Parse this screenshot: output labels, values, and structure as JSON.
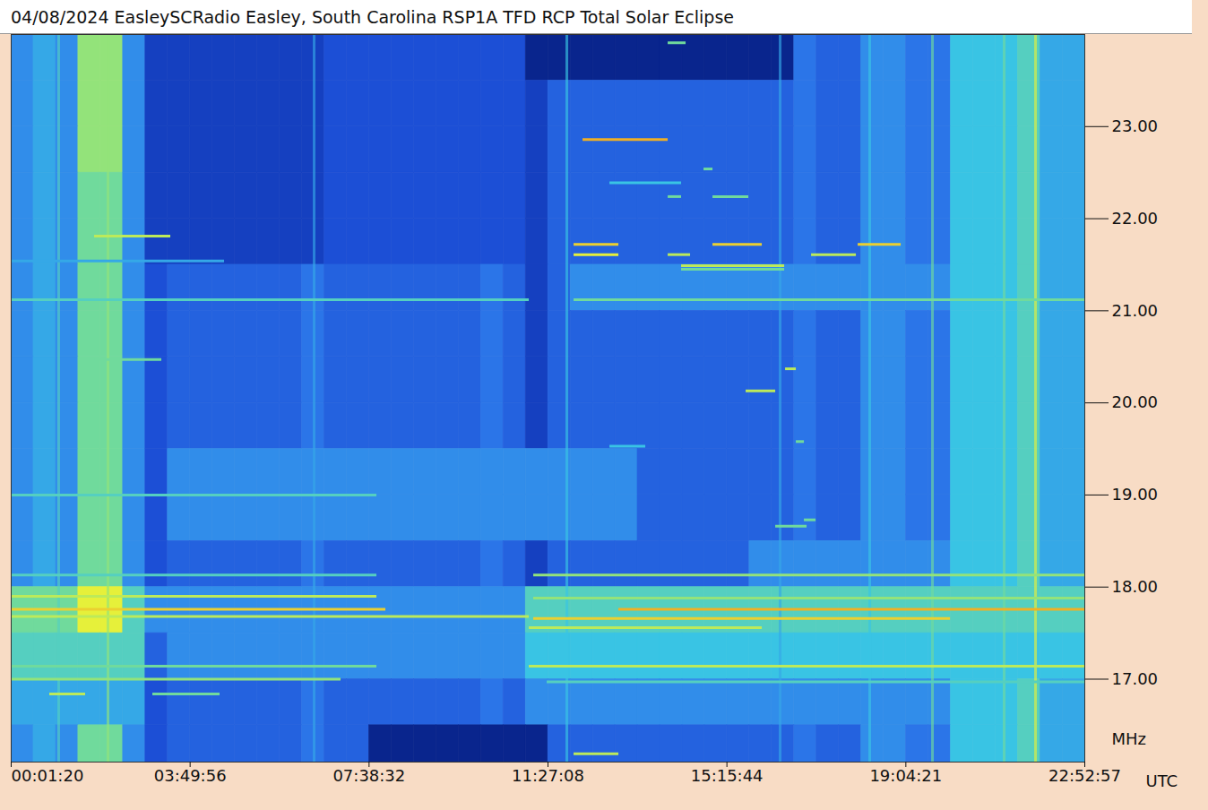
{
  "chart_data": {
    "type": "heatmap",
    "title": "04/08/2024 EasleySCRadio Easley, South Carolina RSP1A TFD RCP Total Solar Eclipse",
    "xlabel": "UTC",
    "ylabel": "MHz",
    "xlim": [
      80,
      82377
    ],
    "xticks": [
      {
        "value": 80,
        "label": "00:01:20"
      },
      {
        "value": 13796,
        "label": "03:49:56"
      },
      {
        "value": 27512,
        "label": "07:38:32"
      },
      {
        "value": 41228,
        "label": "11:27:08"
      },
      {
        "value": 54944,
        "label": "15:15:44"
      },
      {
        "value": 68661,
        "label": "19:04:21"
      },
      {
        "value": 82377,
        "label": "22:52:57"
      }
    ],
    "ylim": [
      16.1,
      24.0
    ],
    "yticks": [
      {
        "value": 17,
        "label": "17.00"
      },
      {
        "value": 18,
        "label": "18.00"
      },
      {
        "value": 19,
        "label": "19.00"
      },
      {
        "value": 20,
        "label": "20.00"
      },
      {
        "value": 21,
        "label": "21.00"
      },
      {
        "value": 22,
        "label": "22.00"
      },
      {
        "value": 23,
        "label": "23.00"
      }
    ],
    "zlim": [
      0,
      10
    ],
    "x_edges": [
      80,
      1795,
      3510,
      5225,
      6940,
      8655,
      10370,
      12085,
      13800,
      15515,
      17230,
      18945,
      20660,
      22375,
      24090,
      25805,
      27520,
      29235,
      30950,
      32665,
      34380,
      36095,
      37810,
      39525,
      41240,
      42955,
      44670,
      46385,
      48100,
      49815,
      51530,
      53245,
      54960,
      56675,
      58390,
      60105,
      61820,
      63535,
      65250,
      66965,
      68680,
      70395,
      72110,
      73825,
      75540,
      77255,
      78970,
      80685,
      82400
    ],
    "y_edges": [
      24,
      23.5,
      23,
      22.5,
      22,
      21.5,
      21,
      20.5,
      20,
      19.5,
      19,
      18.5,
      18,
      17.5,
      17,
      16.5,
      16
    ],
    "z": [
      [
        4,
        4.5,
        4,
        6.5,
        6.5,
        4,
        2,
        2,
        2,
        2,
        2,
        2,
        2,
        2,
        2.5,
        2.5,
        2.5,
        2.5,
        2.5,
        2.5,
        2.5,
        2.5,
        2.5,
        1,
        1,
        1,
        1,
        1,
        1,
        1,
        1,
        1,
        1,
        1,
        1,
        3.5,
        3,
        3,
        4,
        4,
        3.5,
        3.5,
        5,
        5,
        5,
        5.5,
        4.5,
        4.5
      ],
      [
        4,
        4.5,
        4,
        6.5,
        6.5,
        4,
        2,
        2,
        2,
        2,
        2,
        2,
        2,
        2,
        2.5,
        2.5,
        2.5,
        2.5,
        2.5,
        2.5,
        2.5,
        2.5,
        2.5,
        2,
        3,
        3,
        3,
        3,
        3,
        3,
        3,
        3,
        3,
        3,
        3,
        3.5,
        3,
        3,
        4,
        4,
        3.5,
        3.5,
        5,
        5,
        5,
        5.5,
        4.5,
        4.5
      ],
      [
        4,
        4.5,
        4,
        6.5,
        6.5,
        4,
        2,
        2,
        2,
        2,
        2,
        2,
        2,
        2,
        2.5,
        2.5,
        2.5,
        2.5,
        2.5,
        2.5,
        2.5,
        2.5,
        2.5,
        2,
        3,
        3,
        3,
        3,
        3,
        3,
        3,
        3,
        3,
        3,
        3,
        3.5,
        3,
        3,
        4,
        4,
        3.5,
        3.5,
        5,
        5,
        5,
        5.5,
        4.5,
        4.5
      ],
      [
        4,
        4.5,
        4,
        6,
        6,
        4,
        2,
        2,
        2,
        2,
        2,
        2,
        2,
        2,
        2.5,
        2.5,
        2.5,
        2.5,
        2.5,
        2.5,
        2.5,
        2.5,
        2.5,
        2,
        3,
        3,
        3,
        3,
        3,
        3,
        3,
        3,
        3,
        3,
        3,
        3.5,
        3,
        3,
        4,
        4,
        3.5,
        3.5,
        5,
        5,
        5,
        5.5,
        4.5,
        4.5
      ],
      [
        4,
        4.5,
        4,
        6,
        6,
        4,
        2,
        2,
        2,
        2,
        2,
        2,
        2,
        2,
        2.5,
        2.5,
        2.5,
        2.5,
        2.5,
        2.5,
        2.5,
        2.5,
        2.5,
        2,
        3,
        3,
        3,
        3,
        3,
        3,
        3,
        3,
        3,
        3,
        3,
        3.5,
        3,
        3,
        4,
        4,
        3.5,
        3.5,
        5,
        5,
        5,
        5.5,
        4.5,
        4.5
      ],
      [
        4,
        4.5,
        4,
        6,
        6,
        4,
        2.5,
        3,
        3,
        3,
        3,
        3,
        3,
        3.5,
        3,
        3,
        3,
        3,
        3,
        3,
        3,
        3.5,
        3,
        2,
        3,
        4,
        4,
        4,
        4,
        4,
        4,
        4,
        4,
        4,
        4,
        4,
        4,
        4,
        4,
        4,
        4,
        4,
        5,
        5,
        5,
        5.5,
        4.5,
        4.5
      ],
      [
        4,
        4.5,
        4,
        6,
        6,
        4,
        2.5,
        3,
        3,
        3,
        3,
        3,
        3,
        3.5,
        3,
        3,
        3,
        3,
        3,
        3,
        3,
        3.5,
        3,
        2,
        3,
        3,
        3,
        3,
        3,
        3,
        3,
        3,
        3,
        3,
        3,
        3.5,
        3,
        3,
        4,
        4,
        3.5,
        3.5,
        5,
        5,
        5,
        5.5,
        4.5,
        4.5
      ],
      [
        4,
        4.5,
        4,
        6,
        6,
        4,
        2.5,
        3,
        3,
        3,
        3,
        3,
        3,
        3.5,
        3,
        3,
        3,
        3,
        3,
        3,
        3,
        3.5,
        3,
        2,
        3,
        3,
        3,
        3,
        3,
        3,
        3,
        3,
        3,
        3,
        3,
        3.5,
        3,
        3,
        4,
        4,
        3.5,
        3.5,
        5,
        5,
        5,
        5.5,
        4.5,
        4.5
      ],
      [
        4,
        4.5,
        4,
        6,
        6,
        4,
        2.5,
        3,
        3,
        3,
        3,
        3,
        3,
        3.5,
        3,
        3,
        3,
        3,
        3,
        3,
        3,
        3.5,
        3,
        2,
        3,
        3,
        3,
        3,
        3,
        3,
        3,
        3,
        3,
        3,
        3,
        3.5,
        3,
        3,
        4,
        4,
        3.5,
        3.5,
        5,
        5,
        5,
        5.5,
        4.5,
        4.5
      ],
      [
        4,
        4.5,
        4,
        6,
        6,
        4,
        2.5,
        4,
        4,
        4,
        4,
        4,
        4,
        4,
        4,
        4,
        4,
        4,
        4,
        4,
        4,
        4,
        4,
        4,
        4,
        4,
        4,
        4,
        3,
        3,
        3,
        3,
        3,
        3,
        3,
        3.5,
        3,
        3,
        4,
        4,
        3.5,
        3.5,
        5,
        5,
        5,
        5.5,
        4.5,
        4.5
      ],
      [
        4,
        4.5,
        4,
        6,
        6,
        4,
        2.5,
        4,
        4,
        4,
        4,
        4,
        4,
        4,
        4,
        4,
        4,
        4,
        4,
        4,
        4,
        4,
        4,
        4,
        4,
        4,
        4,
        4,
        3,
        3,
        3,
        3,
        3,
        3,
        3,
        3.5,
        3,
        3,
        4,
        4,
        3.5,
        3.5,
        5,
        5,
        5,
        5.5,
        4.5,
        4.5
      ],
      [
        4,
        4.5,
        4,
        6,
        6,
        4,
        2.5,
        3,
        3,
        3,
        3,
        3,
        3,
        3.5,
        3,
        3,
        3,
        3,
        3,
        3,
        3,
        3.5,
        3,
        2,
        3,
        3,
        3,
        3,
        3,
        3,
        3,
        3,
        3,
        4,
        4,
        4,
        4,
        4,
        4,
        4,
        4,
        4,
        5,
        5,
        5,
        5.5,
        4.5,
        4.5
      ],
      [
        6,
        6,
        6,
        7.5,
        7.5,
        5.5,
        4,
        4,
        4,
        4,
        4,
        4,
        4,
        4,
        4,
        4,
        4,
        4,
        4,
        4,
        4,
        4,
        4,
        5.5,
        5.5,
        5.5,
        5.5,
        5.5,
        5.5,
        5.5,
        5.5,
        5.5,
        5.5,
        5.5,
        5.5,
        5.5,
        5.5,
        5.5,
        5.5,
        5.5,
        5.5,
        5.5,
        5.5,
        5.5,
        5.5,
        5.5,
        5.5,
        5.5
      ],
      [
        5.5,
        5.5,
        5.5,
        5.5,
        5.5,
        5.5,
        3,
        4,
        4,
        4,
        4,
        4,
        4,
        4,
        4,
        4,
        4,
        4,
        4,
        4,
        4,
        4,
        4,
        5,
        5,
        5,
        5,
        5,
        5,
        5,
        5,
        5,
        5,
        5,
        5,
        5,
        5,
        5,
        5,
        5,
        5,
        5,
        5,
        5,
        5,
        5,
        5,
        5
      ],
      [
        4.5,
        4.5,
        4.5,
        4.5,
        4.5,
        4.5,
        2.5,
        3,
        3,
        3,
        3,
        3,
        3,
        3.5,
        3,
        3,
        3,
        3,
        3,
        3,
        3,
        3.5,
        3,
        4,
        4,
        4,
        4,
        4,
        4,
        4,
        4,
        4,
        4,
        4,
        4,
        4,
        4,
        4,
        4,
        4,
        4,
        4,
        5,
        5,
        5,
        5.5,
        4.5,
        4.5
      ],
      [
        4,
        4.5,
        4,
        6,
        6,
        4,
        2.5,
        3,
        3,
        3,
        3,
        3,
        3,
        3.5,
        3,
        3,
        1,
        1,
        1,
        1,
        1,
        1,
        1,
        1,
        3,
        3,
        3,
        3,
        3,
        3,
        3,
        3,
        3,
        3,
        3,
        3.5,
        3,
        3,
        4,
        4,
        3.5,
        3.5,
        5,
        5,
        5,
        5.5,
        4.5,
        4.5
      ]
    ],
    "signals": [
      {
        "x1": 80,
        "x2": 39789,
        "y": 21.12,
        "level": 5.5
      },
      {
        "x1": 43224,
        "x2": 82377,
        "y": 21.12,
        "level": 6
      },
      {
        "x1": 80,
        "x2": 28110,
        "y": 18.13,
        "level": 5.5
      },
      {
        "x1": 40132,
        "x2": 82377,
        "y": 18.13,
        "level": 6.5
      },
      {
        "x1": 80,
        "x2": 28110,
        "y": 17.9,
        "level": 7
      },
      {
        "x1": 80,
        "x2": 28797,
        "y": 17.76,
        "level": 8
      },
      {
        "x1": 80,
        "x2": 39789,
        "y": 17.68,
        "level": 7
      },
      {
        "x1": 40132,
        "x2": 82377,
        "y": 17.88,
        "level": 6.5
      },
      {
        "x1": 46659,
        "x2": 82377,
        "y": 17.76,
        "level": 8.5
      },
      {
        "x1": 40132,
        "x2": 72078,
        "y": 17.66,
        "level": 8
      },
      {
        "x1": 39789,
        "x2": 57651,
        "y": 17.56,
        "level": 7
      },
      {
        "x1": 80,
        "x2": 28110,
        "y": 17.14,
        "level": 6
      },
      {
        "x1": 39789,
        "x2": 82377,
        "y": 17.14,
        "level": 7
      },
      {
        "x1": 80,
        "x2": 25362,
        "y": 17.0,
        "level": 6.5
      },
      {
        "x1": 41163,
        "x2": 82377,
        "y": 16.97,
        "level": 5.5
      },
      {
        "x1": 3034,
        "x2": 5782,
        "y": 16.84,
        "level": 7
      },
      {
        "x1": 10935,
        "x2": 16087,
        "y": 16.84,
        "level": 6
      },
      {
        "x1": 80,
        "x2": 28110,
        "y": 19.0,
        "level": 5.5
      },
      {
        "x1": 6469,
        "x2": 11622,
        "y": 20.47,
        "level": 6
      },
      {
        "x1": 6469,
        "x2": 12309,
        "y": 21.81,
        "level": 7
      },
      {
        "x1": 80,
        "x2": 16431,
        "y": 21.54,
        "level": 4.5
      },
      {
        "x1": 43911,
        "x2": 50437,
        "y": 22.86,
        "level": 8.5
      },
      {
        "x1": 50437,
        "x2": 51811,
        "y": 23.91,
        "level": 6
      },
      {
        "x1": 53185,
        "x2": 53872,
        "y": 22.54,
        "level": 6
      },
      {
        "x1": 45972,
        "x2": 51466,
        "y": 22.39,
        "level": 5
      },
      {
        "x1": 50437,
        "x2": 51466,
        "y": 22.24,
        "level": 6
      },
      {
        "x1": 53872,
        "x2": 56620,
        "y": 22.24,
        "level": 6
      },
      {
        "x1": 43224,
        "x2": 46659,
        "y": 21.72,
        "level": 8
      },
      {
        "x1": 43224,
        "x2": 46659,
        "y": 21.61,
        "level": 7.5
      },
      {
        "x1": 50437,
        "x2": 52154,
        "y": 21.61,
        "level": 7
      },
      {
        "x1": 53872,
        "x2": 57651,
        "y": 21.72,
        "level": 8
      },
      {
        "x1": 61429,
        "x2": 64864,
        "y": 21.61,
        "level": 7
      },
      {
        "x1": 65002,
        "x2": 68299,
        "y": 21.72,
        "level": 8
      },
      {
        "x1": 51466,
        "x2": 59368,
        "y": 21.49,
        "level": 7
      },
      {
        "x1": 51466,
        "x2": 59368,
        "y": 21.45,
        "level": 6
      },
      {
        "x1": 59437,
        "x2": 60261,
        "y": 20.37,
        "level": 7
      },
      {
        "x1": 56414,
        "x2": 58681,
        "y": 20.13,
        "level": 7
      },
      {
        "x1": 60261,
        "x2": 60880,
        "y": 19.58,
        "level": 6
      },
      {
        "x1": 45972,
        "x2": 48720,
        "y": 19.53,
        "level": 5
      },
      {
        "x1": 60880,
        "x2": 61773,
        "y": 18.73,
        "level": 6
      },
      {
        "x1": 58681,
        "x2": 61086,
        "y": 18.66,
        "level": 6
      },
      {
        "x1": 43224,
        "x2": 46659,
        "y": 16.19,
        "level": 7
      }
    ],
    "stripes": [
      {
        "x": 3720,
        "level": 5.5
      },
      {
        "x": 7500,
        "level": 6.5
      },
      {
        "x": 23300,
        "level": 4.5
      },
      {
        "x": 42674,
        "level": 5
      },
      {
        "x": 59023,
        "level": 4.5
      },
      {
        "x": 65893,
        "level": 5
      },
      {
        "x": 70701,
        "level": 6
      },
      {
        "x": 76197,
        "level": 6
      },
      {
        "x": 78602,
        "level": 7.5
      }
    ]
  }
}
